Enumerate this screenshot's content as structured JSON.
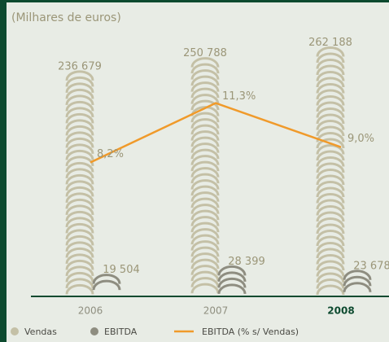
{
  "chart_data": {
    "type": "bar",
    "title": "(Milhares de euros)",
    "categories": [
      "2006",
      "2007",
      "2008"
    ],
    "ylim": [
      0,
      280000
    ],
    "y2lim": [
      1.2,
      14.9
    ],
    "series": [
      {
        "name": "Vendas",
        "color": "#c4c0a6",
        "values": [
          236679,
          250788,
          262188
        ],
        "value_labels": [
          "236 679",
          "250 788",
          "262 188"
        ]
      },
      {
        "name": "EBITDA",
        "color": "#8e8d80",
        "values": [
          19504,
          28399,
          23678
        ],
        "value_labels": [
          "19 504",
          "28 399",
          "23 678"
        ]
      },
      {
        "name": "EBITDA (% s/ Vendas)",
        "type": "line",
        "axis": "y2",
        "color": "#f09a2a",
        "values": [
          8.2,
          11.3,
          9.0
        ],
        "value_labels": [
          "8,2%",
          "11,3%",
          "9,0%"
        ]
      }
    ]
  }
}
